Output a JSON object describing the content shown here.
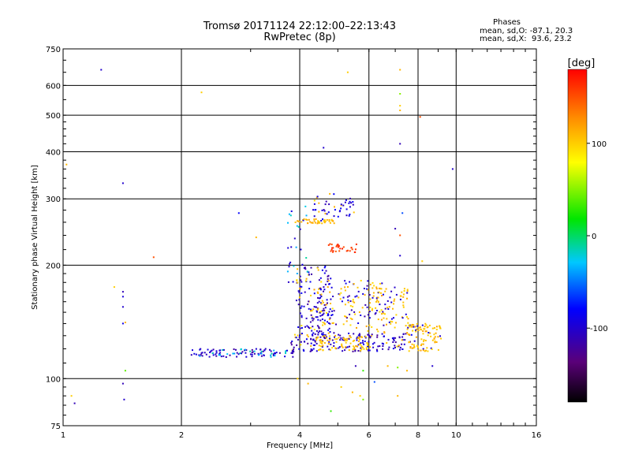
{
  "header": {
    "title_line1": "Tromsø 20171124 22:12:00–22:13:43",
    "title_line2": "RwPretec (8p)",
    "stats_title": "Phases",
    "stats_o": "mean, sd,O: -87.1, 20.3",
    "stats_x": "mean, sd,X:  93.6, 23.2"
  },
  "chart_data": {
    "type": "scatter",
    "xlabel": "Frequency [MHz]",
    "ylabel": "Stationary phase Virtual Height [km]",
    "x_scale": "log",
    "y_scale": "log",
    "xlim": [
      1,
      16
    ],
    "ylim": [
      75,
      750
    ],
    "x_ticks": [
      1,
      2,
      4,
      6,
      8,
      10,
      16
    ],
    "x_gridlines": [
      2,
      4,
      6,
      8,
      10
    ],
    "y_ticks": [
      75,
      100,
      200,
      300,
      400,
      500,
      600,
      750
    ],
    "grid": true,
    "colorbar": {
      "label": "[deg]",
      "ticks": [
        100,
        0,
        -100
      ],
      "range": [
        -180,
        180
      ],
      "colormap": "rainbow (black-purple-blue-cyan-green-yellow-orange-red)"
    },
    "points": [
      [
        1.05,
        90,
        100
      ],
      [
        1.07,
        86,
        -110
      ],
      [
        1.25,
        660,
        -100
      ],
      [
        1.02,
        370,
        110
      ],
      [
        1.42,
        330,
        -100
      ],
      [
        1.35,
        175,
        100
      ],
      [
        1.42,
        170,
        -110
      ],
      [
        1.42,
        165,
        -95
      ],
      [
        1.42,
        155,
        -100
      ],
      [
        1.42,
        140,
        -90
      ],
      [
        1.44,
        141,
        110
      ],
      [
        1.44,
        105,
        40
      ],
      [
        1.42,
        97,
        -110
      ],
      [
        1.43,
        88,
        -100
      ],
      [
        1.7,
        210,
        150
      ],
      [
        2.25,
        575,
        100
      ],
      [
        2.8,
        275,
        -80
      ],
      [
        3.1,
        237,
        110
      ],
      [
        4.6,
        410,
        -100
      ],
      [
        5.3,
        650,
        100
      ],
      [
        7.2,
        660,
        110
      ],
      [
        7.2,
        570,
        50
      ],
      [
        7.2,
        530,
        100
      ],
      [
        7.2,
        515,
        110
      ],
      [
        8.1,
        495,
        150
      ],
      [
        7.2,
        420,
        -110
      ],
      [
        9.8,
        360,
        -100
      ],
      [
        7.3,
        275,
        -60
      ],
      [
        7.0,
        250,
        -110
      ],
      [
        7.2,
        240,
        150
      ],
      [
        7.2,
        212,
        -100
      ],
      [
        8.2,
        205,
        100
      ],
      [
        3.95,
        100,
        100
      ],
      [
        4.2,
        97,
        110
      ],
      [
        5.1,
        95,
        100
      ],
      [
        5.45,
        92,
        110
      ],
      [
        5.7,
        90,
        100
      ],
      [
        5.8,
        88,
        50
      ],
      [
        4.8,
        82,
        30
      ],
      [
        6.2,
        98,
        -60
      ],
      [
        7.1,
        90,
        110
      ],
      [
        6.7,
        108,
        110
      ],
      [
        5.55,
        108,
        -110
      ],
      [
        5.8,
        105,
        30
      ],
      [
        7.5,
        105,
        110
      ],
      [
        7.1,
        107,
        50
      ],
      [
        8.7,
        108,
        -100
      ]
    ],
    "clusters": [
      {
        "x": [
          2.1,
          3.9
        ],
        "h": [
          114,
          120
        ],
        "n": 110,
        "phase": [
          -120,
          -90
        ],
        "mix": 0.25,
        "alt": [
          -40,
          -10
        ]
      },
      {
        "x": [
          3.8,
          7.5
        ],
        "h": [
          118,
          132
        ],
        "n": 170,
        "phase": [
          -125,
          -85
        ],
        "mix": 0.15,
        "alt": [
          90,
          115
        ]
      },
      {
        "x": [
          3.9,
          4.8
        ],
        "h": [
          130,
          200
        ],
        "n": 150,
        "phase": [
          -120,
          -80
        ],
        "mix": 0.2,
        "alt": [
          90,
          120
        ]
      },
      {
        "x": [
          4.3,
          6.6
        ],
        "h": [
          128,
          182
        ],
        "n": 150,
        "phase": [
          -120,
          -85
        ],
        "mix": 0.45,
        "alt": [
          90,
          120
        ]
      },
      {
        "x": [
          4.4,
          6.0
        ],
        "h": [
          118,
          130
        ],
        "n": 70,
        "phase": [
          95,
          115
        ],
        "mix": 0.1,
        "alt": [
          -110,
          -90
        ]
      },
      {
        "x": [
          6.0,
          7.6
        ],
        "h": [
          135,
          175
        ],
        "n": 80,
        "phase": [
          95,
          115
        ],
        "mix": 0.3,
        "alt": [
          -110,
          -90
        ]
      },
      {
        "x": [
          7.5,
          9.2
        ],
        "h": [
          118,
          140
        ],
        "n": 100,
        "phase": [
          95,
          120
        ],
        "mix": 0.15,
        "alt": [
          -110,
          -80
        ]
      },
      {
        "x": [
          3.9,
          4.9
        ],
        "h": [
          258,
          265
        ],
        "n": 45,
        "phase": [
          100,
          118
        ],
        "mix": 0.1,
        "alt": [
          -100,
          -80
        ]
      },
      {
        "x": [
          4.3,
          5.5
        ],
        "h": [
          268,
          310
        ],
        "n": 45,
        "phase": [
          -115,
          -80
        ],
        "mix": 0.25,
        "alt": [
          95,
          115
        ]
      },
      {
        "x": [
          4.7,
          5.6
        ],
        "h": [
          216,
          228
        ],
        "n": 30,
        "phase": [
          145,
          170
        ],
        "mix": 0,
        "alt": [
          0,
          0
        ]
      },
      {
        "x": [
          3.7,
          4.2
        ],
        "h": [
          180,
          300
        ],
        "n": 25,
        "phase": [
          -40,
          -10
        ],
        "mix": 0.3,
        "alt": [
          -110,
          -90
        ]
      }
    ]
  }
}
